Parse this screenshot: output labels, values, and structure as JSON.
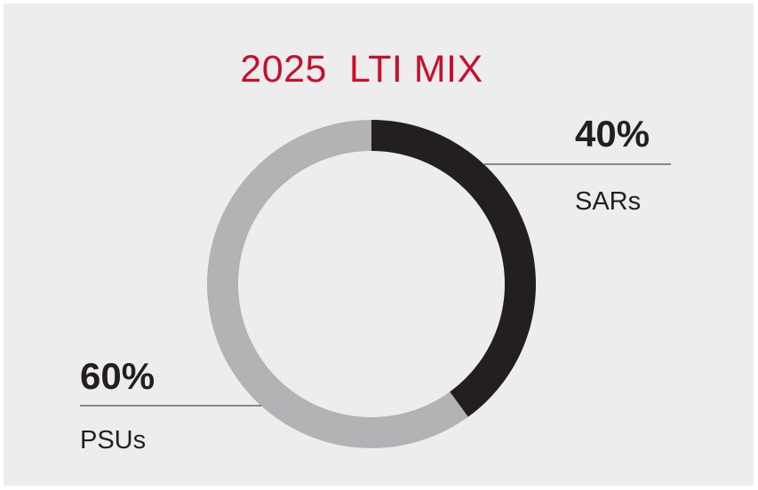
{
  "chart_data": {
    "type": "pie",
    "donut": true,
    "title": "2025  LTI MIX",
    "slices": [
      {
        "label": "SARs",
        "value": 40,
        "value_label": "40%",
        "color": "#231f20"
      },
      {
        "label": "PSUs",
        "value": 60,
        "value_label": "60%",
        "color": "#b2b3b5"
      }
    ],
    "title_color": "#c8102e"
  }
}
